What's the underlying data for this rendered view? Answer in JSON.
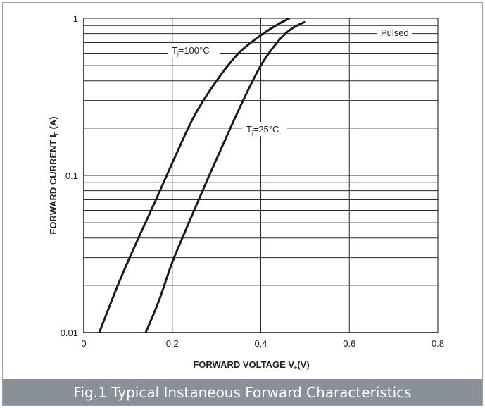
{
  "caption": "Fig.1 Typical Instaneous Forward Characteristics",
  "chart_data": {
    "type": "line",
    "title": "",
    "xlabel": {
      "main": "FORWARD VOLTAGE",
      "symbol": "V",
      "sub": "F",
      "unit": "(V)"
    },
    "ylabel": {
      "main": "FORWARD CURRENT I",
      "sub": "F",
      "unit": "(A)"
    },
    "xlim": [
      0,
      0.8
    ],
    "ylim": [
      0.01,
      1
    ],
    "yscale": "log",
    "grid": true,
    "xticks": [
      0,
      0.2,
      0.4,
      0.6,
      0.8
    ],
    "xtick_labels": [
      "0",
      "0.2",
      "0.4",
      "0.6",
      "0.8"
    ],
    "yticks": [
      0.01,
      0.1,
      1
    ],
    "ytick_labels": [
      "0.01",
      "0.1",
      "1"
    ],
    "annotations": {
      "pulsed": "Pulsed"
    },
    "series": [
      {
        "name": {
          "pre": "T",
          "sub": "j",
          "post": "=100°C"
        },
        "x": [
          0.035,
          0.08,
          0.12,
          0.16,
          0.2,
          0.25,
          0.3,
          0.35,
          0.4,
          0.44,
          0.465
        ],
        "y": [
          0.01,
          0.021,
          0.038,
          0.067,
          0.12,
          0.24,
          0.4,
          0.6,
          0.78,
          0.92,
          1.0
        ]
      },
      {
        "name": {
          "pre": "T",
          "sub": "j",
          "post": "=25°C"
        },
        "x": [
          0.14,
          0.17,
          0.2,
          0.24,
          0.28,
          0.32,
          0.36,
          0.4,
          0.44,
          0.47,
          0.5
        ],
        "y": [
          0.01,
          0.016,
          0.028,
          0.052,
          0.095,
          0.17,
          0.3,
          0.5,
          0.72,
          0.86,
          0.95
        ]
      }
    ],
    "line_color": "#1a1a1a",
    "grid_color": "#2a2a2a"
  }
}
